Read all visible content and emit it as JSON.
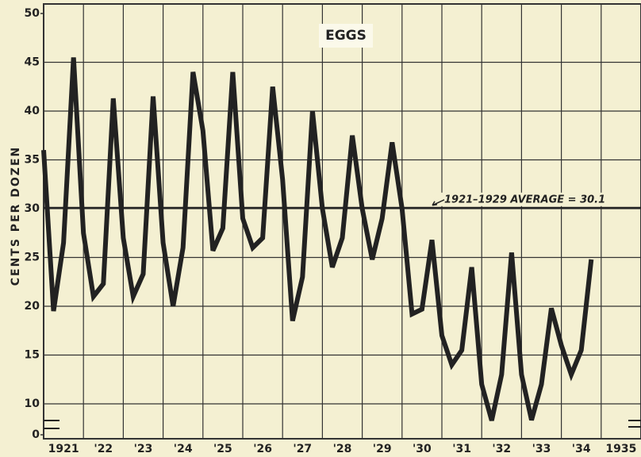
{
  "chart_data": {
    "type": "line",
    "title": "EGGS",
    "y_label": "CENTS PER DOZEN",
    "x": [
      1921,
      1921.25,
      1921.5,
      1921.75,
      1922,
      1922.25,
      1922.5,
      1922.75,
      1923,
      1923.25,
      1923.5,
      1923.75,
      1924,
      1924.25,
      1924.5,
      1924.75,
      1925,
      1925.25,
      1925.5,
      1925.75,
      1926,
      1926.25,
      1926.5,
      1926.75,
      1927,
      1927.25,
      1927.5,
      1927.75,
      1928,
      1928.25,
      1928.5,
      1928.75,
      1929,
      1929.25,
      1929.5,
      1929.75,
      1930,
      1930.25,
      1930.5,
      1930.75,
      1931,
      1931.25,
      1931.5,
      1931.75,
      1932,
      1932.25,
      1932.5,
      1932.75,
      1933,
      1933.25,
      1933.5,
      1933.75,
      1934,
      1934.25,
      1934.5,
      1934.75
    ],
    "series": [
      {
        "name": "Eggs",
        "color": "#222222",
        "values": [
          36,
          19.5,
          26.5,
          45.5,
          27.5,
          21,
          22.3,
          41.3,
          27,
          21,
          23.3,
          41.5,
          26.5,
          20,
          26,
          44,
          38,
          25.7,
          28,
          44,
          29,
          26,
          27,
          42.5,
          33,
          18.5,
          23,
          40,
          30,
          24,
          27,
          37.5,
          30,
          24.8,
          29,
          36.8,
          30,
          19.2,
          19.7,
          26.8,
          17,
          14,
          15.5,
          24,
          12,
          9.5,
          13,
          25.5,
          13,
          9.8,
          12,
          19.8,
          16,
          13,
          15.5,
          24.8
        ]
      }
    ],
    "reference_line": {
      "value": 30.1,
      "label": "1921–1929 AVERAGE = 30.1"
    },
    "xlim": [
      1921,
      1936
    ],
    "xticks": [
      {
        "value": 1921,
        "label": "1921"
      },
      {
        "value": 1922,
        "label": "'22"
      },
      {
        "value": 1923,
        "label": "'23"
      },
      {
        "value": 1924,
        "label": "'24"
      },
      {
        "value": 1925,
        "label": "'25"
      },
      {
        "value": 1926,
        "label": "'26"
      },
      {
        "value": 1927,
        "label": "'27"
      },
      {
        "value": 1928,
        "label": "'28"
      },
      {
        "value": 1929,
        "label": "'29"
      },
      {
        "value": 1930,
        "label": "'30"
      },
      {
        "value": 1931,
        "label": "'31"
      },
      {
        "value": 1932,
        "label": "'32"
      },
      {
        "value": 1933,
        "label": "'33"
      },
      {
        "value": 1934,
        "label": "'34"
      },
      {
        "value": 1935,
        "label": "1935"
      }
    ],
    "ylim": [
      0,
      50
    ],
    "yticks": [
      0,
      10,
      15,
      20,
      25,
      30,
      35,
      40,
      45,
      50
    ],
    "y_axis_break": true,
    "grid": true
  }
}
